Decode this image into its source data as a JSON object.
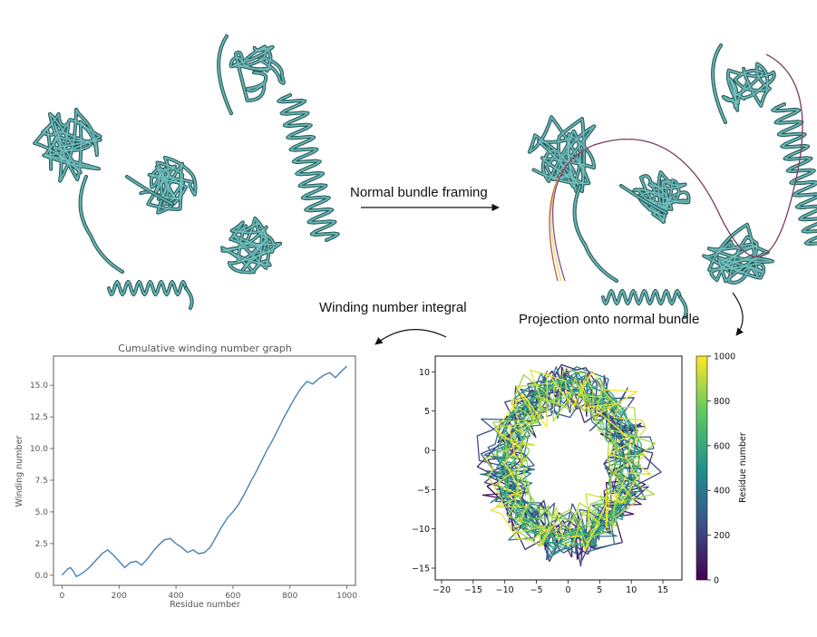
{
  "labels": {
    "framing": "Normal bundle framing",
    "projection": "Projection onto normal bundle",
    "winding_integral": "Winding number integral"
  },
  "colors": {
    "tube": "#4e9a9a",
    "tube_edge": "#1f4d4d",
    "tube_light": "#8fd6d2",
    "frame_red": "#b0362e",
    "frame_yellow": "#e8d43a",
    "line_blue": "#4682b4"
  },
  "chart_data": [
    {
      "type": "line",
      "title": "Cumulative winding number graph",
      "xlabel": "Residue number",
      "ylabel": "Winding number",
      "xlim": [
        -30,
        1030
      ],
      "ylim": [
        -0.8,
        17.3
      ],
      "xticks": [
        0,
        200,
        400,
        600,
        800,
        1000
      ],
      "yticks": [
        0.0,
        2.5,
        5.0,
        7.5,
        10.0,
        12.5,
        15.0
      ],
      "ytick_labels": [
        "0.0",
        "2.5",
        "5.0",
        "7.5",
        "10.0",
        "12.5",
        "15.0"
      ],
      "series": [
        {
          "x": [
            0,
            20,
            30,
            40,
            50,
            60,
            80,
            100,
            120,
            140,
            160,
            180,
            200,
            220,
            240,
            260,
            280,
            300,
            320,
            340,
            360,
            380,
            400,
            420,
            440,
            460,
            480,
            500,
            520,
            540,
            560,
            580,
            600,
            620,
            640,
            660,
            680,
            700,
            720,
            740,
            760,
            780,
            800,
            820,
            840,
            860,
            880,
            900,
            920,
            940,
            960,
            980,
            1000
          ],
          "y": [
            0.0,
            0.5,
            0.6,
            0.3,
            -0.1,
            0.0,
            0.3,
            0.7,
            1.2,
            1.7,
            2.0,
            1.6,
            1.1,
            0.6,
            1.0,
            1.1,
            0.8,
            1.3,
            1.9,
            2.4,
            2.8,
            2.9,
            2.5,
            2.2,
            1.8,
            2.0,
            1.7,
            1.8,
            2.2,
            3.0,
            3.8,
            4.5,
            5.0,
            5.6,
            6.4,
            7.3,
            8.1,
            9.0,
            9.9,
            10.7,
            11.6,
            12.5,
            13.3,
            14.1,
            14.8,
            15.3,
            15.1,
            15.5,
            15.8,
            16.0,
            15.6,
            16.1,
            16.5
          ]
        }
      ]
    },
    {
      "type": "line",
      "xlim": [
        -21,
        18
      ],
      "ylim": [
        -16.5,
        12
      ],
      "xticks": [
        -20,
        -15,
        -10,
        -5,
        0,
        5,
        10,
        15
      ],
      "yticks": [
        -15,
        -10,
        -5,
        0,
        5,
        10
      ],
      "colorbar": {
        "label": "Residue number",
        "range": [
          0,
          1000
        ],
        "ticks": [
          0,
          200,
          400,
          600,
          800,
          1000
        ],
        "colormap": [
          "#440154",
          "#3b528b",
          "#21918c",
          "#5ec962",
          "#fde725"
        ]
      }
    }
  ]
}
